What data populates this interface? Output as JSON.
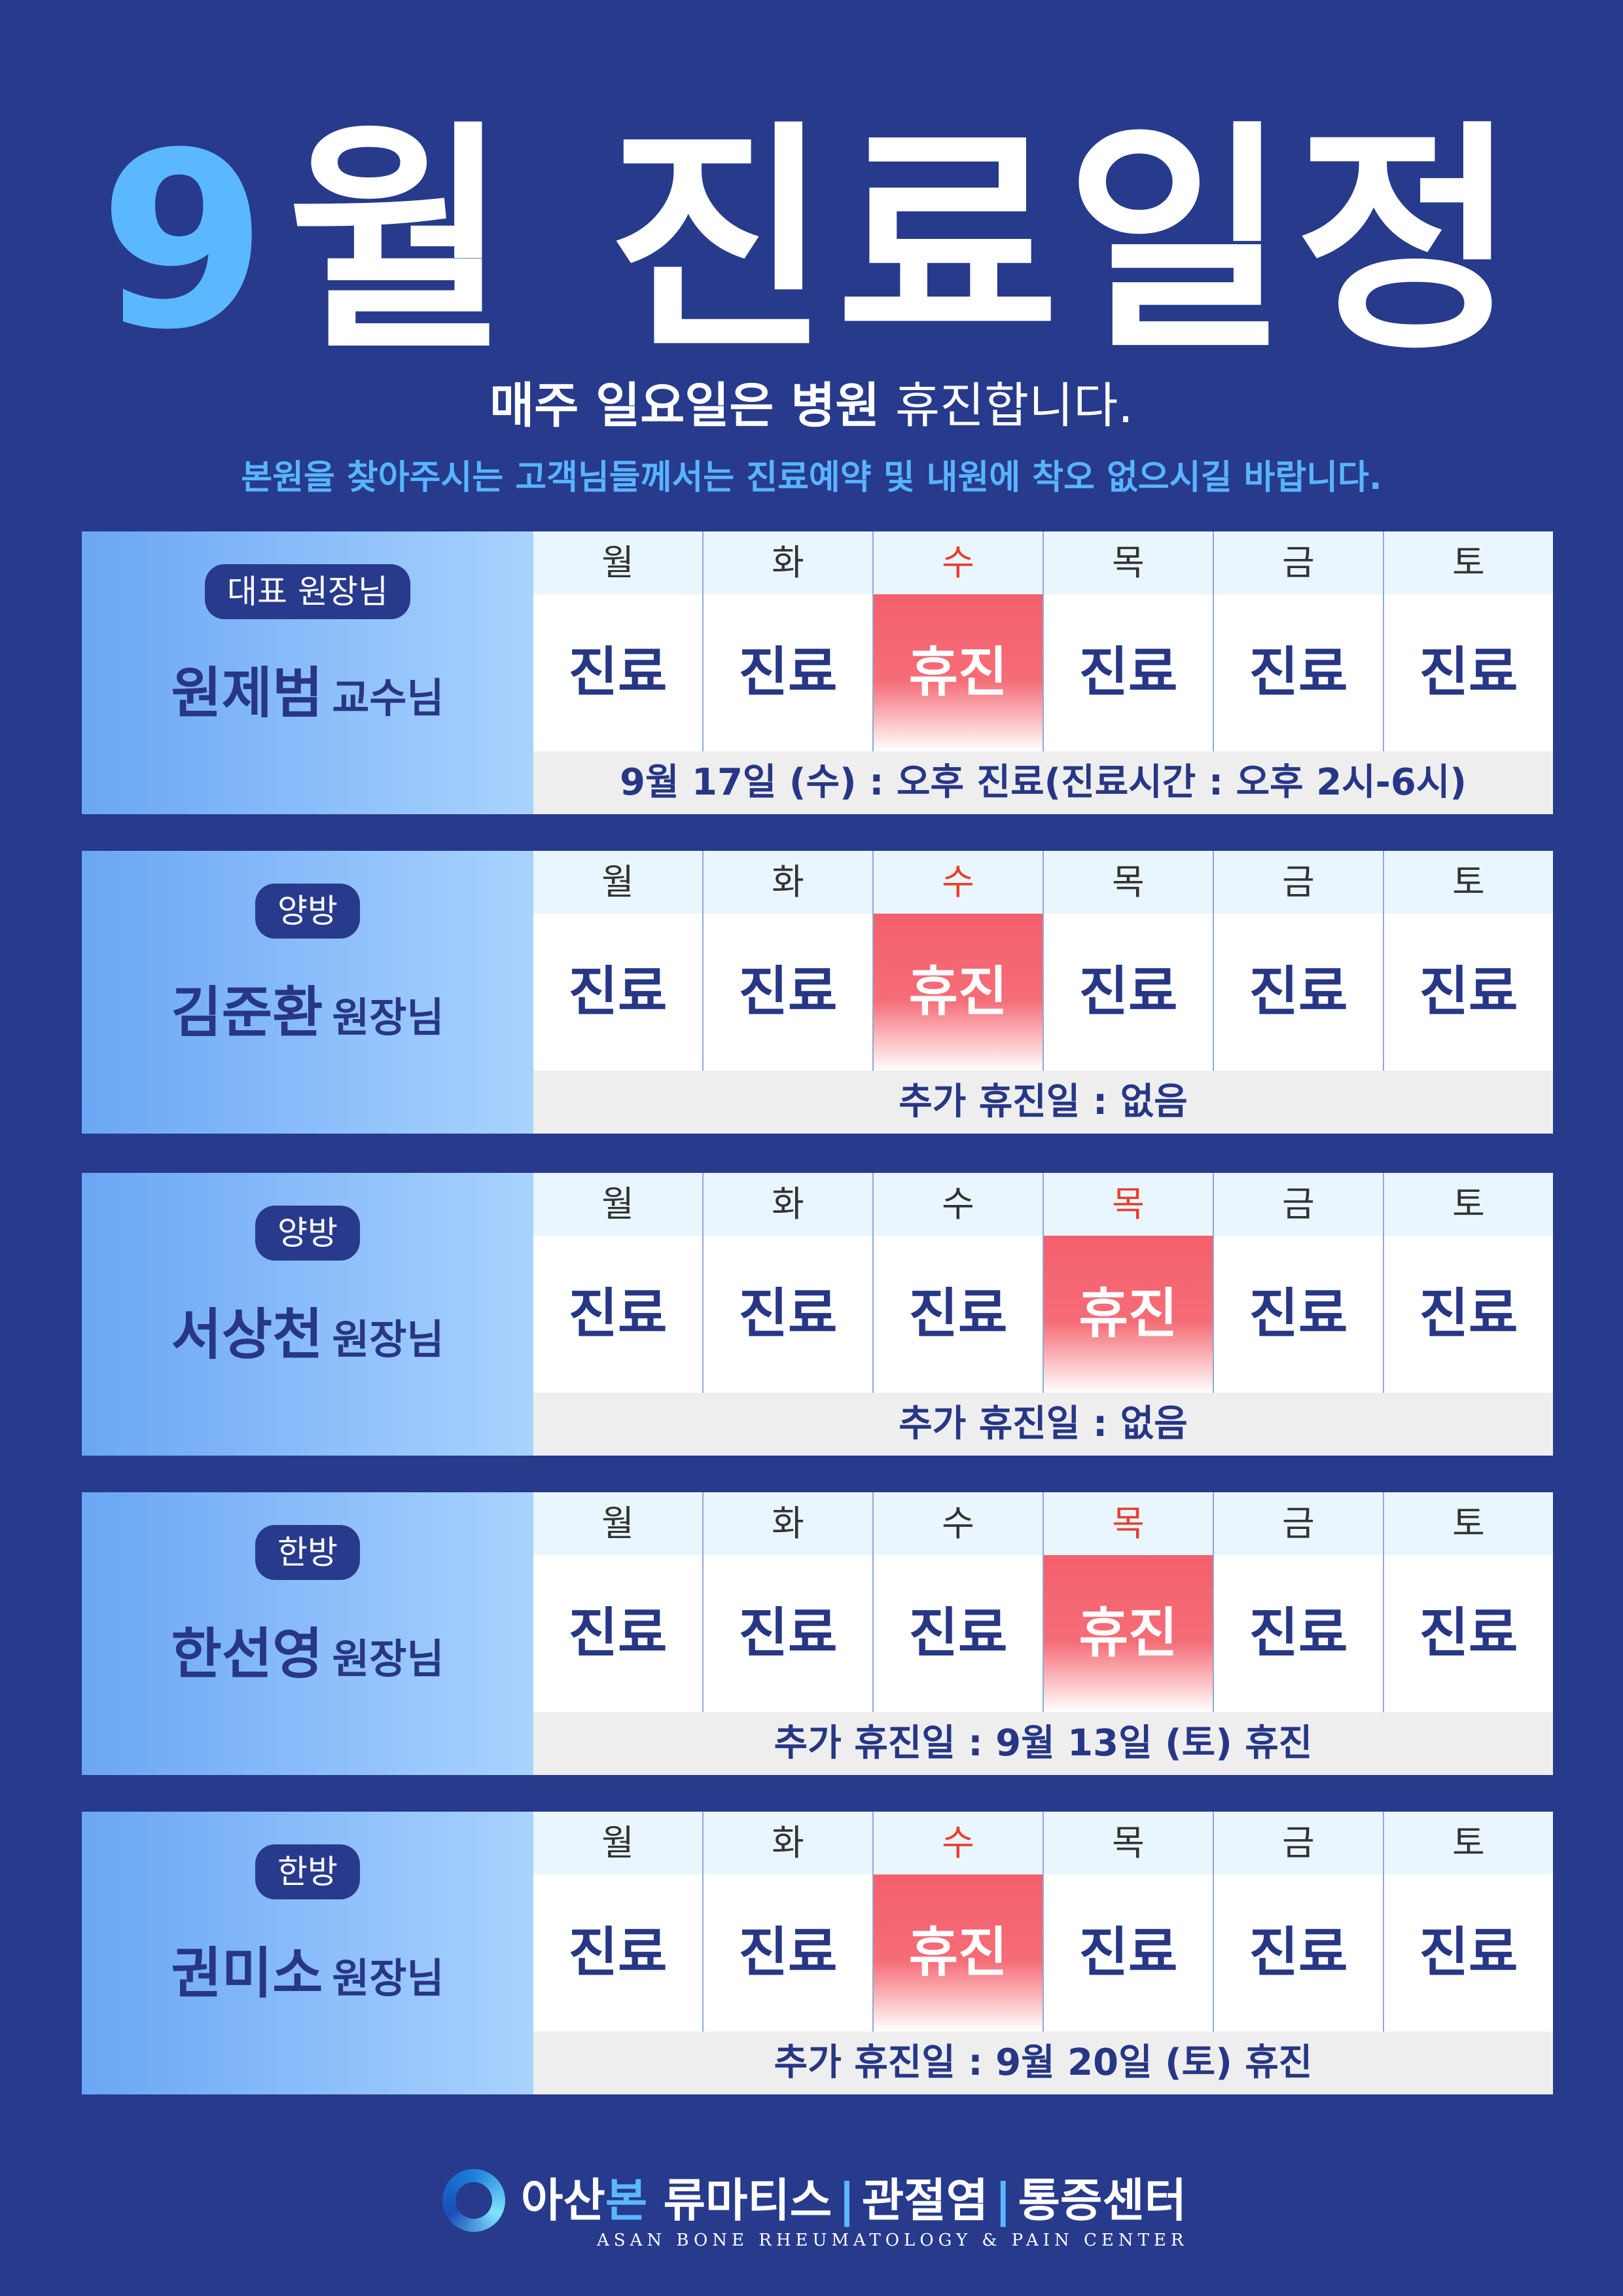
{
  "header": {
    "title_number": "9",
    "title_text": "월 진료일정",
    "notice_bold_1": "매주 일요일은 병원",
    "notice_normal": " 휴진합니다.",
    "notice_sub": "본원을 찾아주시는 고객님들께서는 진료예약 및 내원에 착오 없으시길 바랍니다."
  },
  "colors": {
    "background": "#283A8C",
    "accent": "#5BB8FF",
    "closed": "#F4606C",
    "day_highlight": "#E8402F"
  },
  "schedules": [
    {
      "badge": "대표 원장님",
      "name": "원제범",
      "title": "교수님",
      "days": [
        {
          "label": "월",
          "status": "진료",
          "off": false
        },
        {
          "label": "화",
          "status": "진료",
          "off": false
        },
        {
          "label": "수",
          "status": "휴진",
          "off": true
        },
        {
          "label": "목",
          "status": "진료",
          "off": false
        },
        {
          "label": "금",
          "status": "진료",
          "off": false
        },
        {
          "label": "토",
          "status": "진료",
          "off": false
        }
      ],
      "note": "9월 17일 (수) : 오후 진료(진료시간 : 오후 2시-6시)"
    },
    {
      "badge": "양방",
      "name": "김준환",
      "title": "원장님",
      "days": [
        {
          "label": "월",
          "status": "진료",
          "off": false
        },
        {
          "label": "화",
          "status": "진료",
          "off": false
        },
        {
          "label": "수",
          "status": "휴진",
          "off": true
        },
        {
          "label": "목",
          "status": "진료",
          "off": false
        },
        {
          "label": "금",
          "status": "진료",
          "off": false
        },
        {
          "label": "토",
          "status": "진료",
          "off": false
        }
      ],
      "note": "추가 휴진일 : 없음"
    },
    {
      "badge": "양방",
      "name": "서상천",
      "title": "원장님",
      "days": [
        {
          "label": "월",
          "status": "진료",
          "off": false
        },
        {
          "label": "화",
          "status": "진료",
          "off": false
        },
        {
          "label": "수",
          "status": "진료",
          "off": false
        },
        {
          "label": "목",
          "status": "휴진",
          "off": true
        },
        {
          "label": "금",
          "status": "진료",
          "off": false
        },
        {
          "label": "토",
          "status": "진료",
          "off": false
        }
      ],
      "note": "추가 휴진일 : 없음"
    },
    {
      "badge": "한방",
      "name": "한선영",
      "title": "원장님",
      "days": [
        {
          "label": "월",
          "status": "진료",
          "off": false
        },
        {
          "label": "화",
          "status": "진료",
          "off": false
        },
        {
          "label": "수",
          "status": "진료",
          "off": false
        },
        {
          "label": "목",
          "status": "휴진",
          "off": true
        },
        {
          "label": "금",
          "status": "진료",
          "off": false
        },
        {
          "label": "토",
          "status": "진료",
          "off": false
        }
      ],
      "note": "추가 휴진일 : 9월 13일 (토) 휴진"
    },
    {
      "badge": "한방",
      "name": "권미소",
      "title": "원장님",
      "days": [
        {
          "label": "월",
          "status": "진료",
          "off": false
        },
        {
          "label": "화",
          "status": "진료",
          "off": false
        },
        {
          "label": "수",
          "status": "휴진",
          "off": true
        },
        {
          "label": "목",
          "status": "진료",
          "off": false
        },
        {
          "label": "금",
          "status": "진료",
          "off": false
        },
        {
          "label": "토",
          "status": "진료",
          "off": false
        }
      ],
      "note": "추가 휴진일 : 9월 20일 (토) 휴진"
    }
  ],
  "footer": {
    "logo_icon": "ring-logo-icon",
    "name_part1": "아산",
    "name_part2": "본",
    "name_part3": " 류마티스",
    "sep": "|",
    "name_part4": "관절염",
    "name_part5": "통증센터",
    "english": "ASAN BONE RHEUMATOLOGY & PAIN CENTER"
  }
}
